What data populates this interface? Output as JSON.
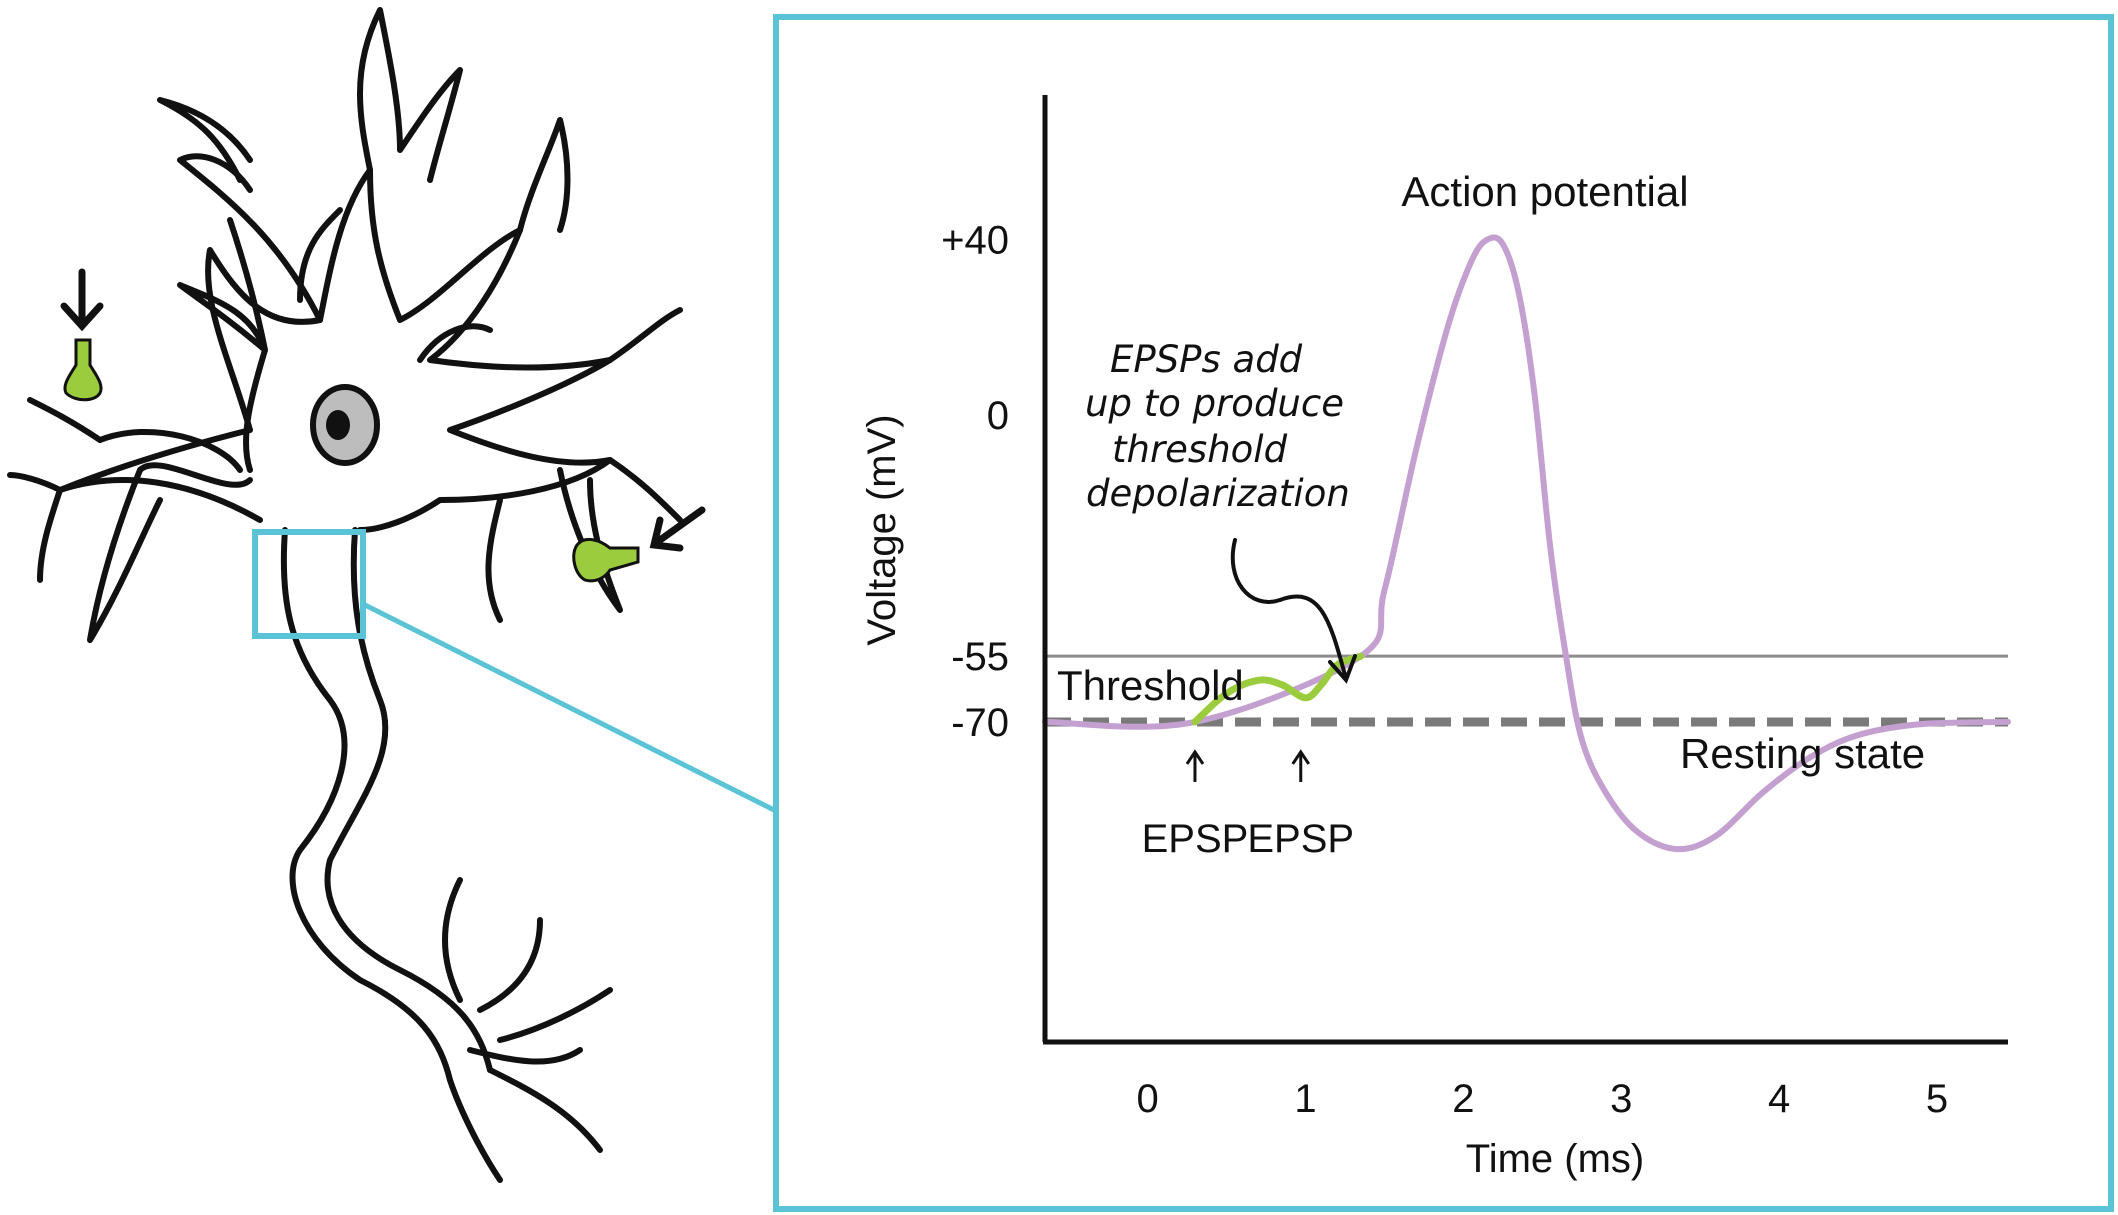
{
  "colors": {
    "frame": "#5bc3d6",
    "action_potential": "#c3a0d0",
    "epsp": "#9acc3e",
    "threshold_line": "#8c8c8c",
    "resting_line": "#7a7a7a",
    "axis": "#111111",
    "synapse": "#9acc3e"
  },
  "icons": [
    "neuron-illustration",
    "synapse-bulb-icon",
    "down-arrow-icon"
  ],
  "chart_data": {
    "type": "line",
    "xlabel": "Time (ms)",
    "ylabel": "Voltage (mV)",
    "xlim": [
      -0.65,
      5.45
    ],
    "ylim": [
      -143,
      73
    ],
    "x_ticks": [
      0,
      1,
      2,
      3,
      4,
      5
    ],
    "y_ticks": [
      {
        "value": 40,
        "label": "+40"
      },
      {
        "value": 0,
        "label": "0"
      },
      {
        "value": -55,
        "label": "-55"
      },
      {
        "value": -70,
        "label": "-70"
      }
    ],
    "reference_lines": [
      {
        "name": "Threshold",
        "value": -55,
        "style": "solid"
      },
      {
        "name": "Resting state",
        "value": -70,
        "style": "dashed"
      }
    ],
    "series": [
      {
        "name": "Action potential",
        "x": [
          -0.65,
          0.3,
          1.35,
          1.5,
          1.7,
          1.9,
          2.05,
          2.15,
          2.25,
          2.35,
          2.45,
          2.55,
          2.65,
          2.75,
          2.9,
          3.1,
          3.35,
          3.6,
          3.9,
          4.2,
          4.5,
          4.9,
          5.45
        ],
        "y": [
          -70,
          -70,
          -55,
          -40,
          -8,
          20,
          35,
          40,
          39,
          28,
          5,
          -30,
          -55,
          -74,
          -86,
          -95,
          -99,
          -96,
          -86,
          -78,
          -73,
          -70.5,
          -70
        ]
      },
      {
        "name": "EPSPs",
        "x": [
          0.3,
          0.5,
          0.7,
          0.85,
          1.0,
          1.1,
          1.2,
          1.35
        ],
        "y": [
          -70,
          -63.5,
          -60.5,
          -61.5,
          -64.5,
          -61.5,
          -57,
          -55
        ]
      }
    ],
    "annotations": [
      {
        "text": "Action potential"
      },
      {
        "text": "Threshold"
      },
      {
        "text": "Resting state"
      },
      {
        "lines": [
          "EPSPs add",
          "up to produce",
          "threshold",
          "depolarization"
        ]
      },
      {
        "text": "EPSP",
        "x": 0.3
      },
      {
        "text": "EPSP",
        "x": 0.97
      }
    ]
  }
}
